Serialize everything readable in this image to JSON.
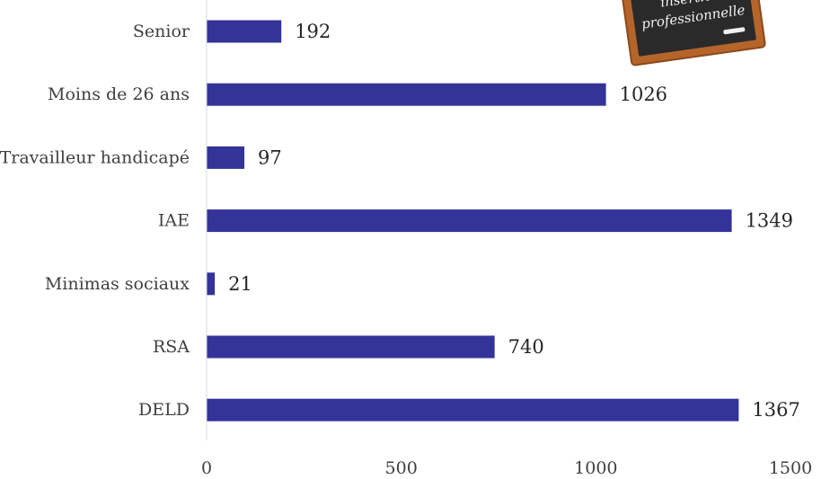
{
  "chart_data": {
    "type": "bar",
    "orientation": "horizontal",
    "categories": [
      "Senior",
      "Moins de 26 ans",
      "Travailleur handicapé",
      "IAE",
      "Minimas sociaux",
      "RSA",
      "DELD"
    ],
    "values": [
      192,
      1026,
      97,
      1349,
      21,
      740,
      1367
    ],
    "xlim": [
      0,
      1500
    ],
    "xticks": [
      0,
      500,
      1000,
      1500
    ],
    "grid": false,
    "bar_color": "#333399",
    "data_labels": true
  },
  "decoration": {
    "chalkboard_lines": [
      "insertion",
      "professionnelle"
    ]
  }
}
